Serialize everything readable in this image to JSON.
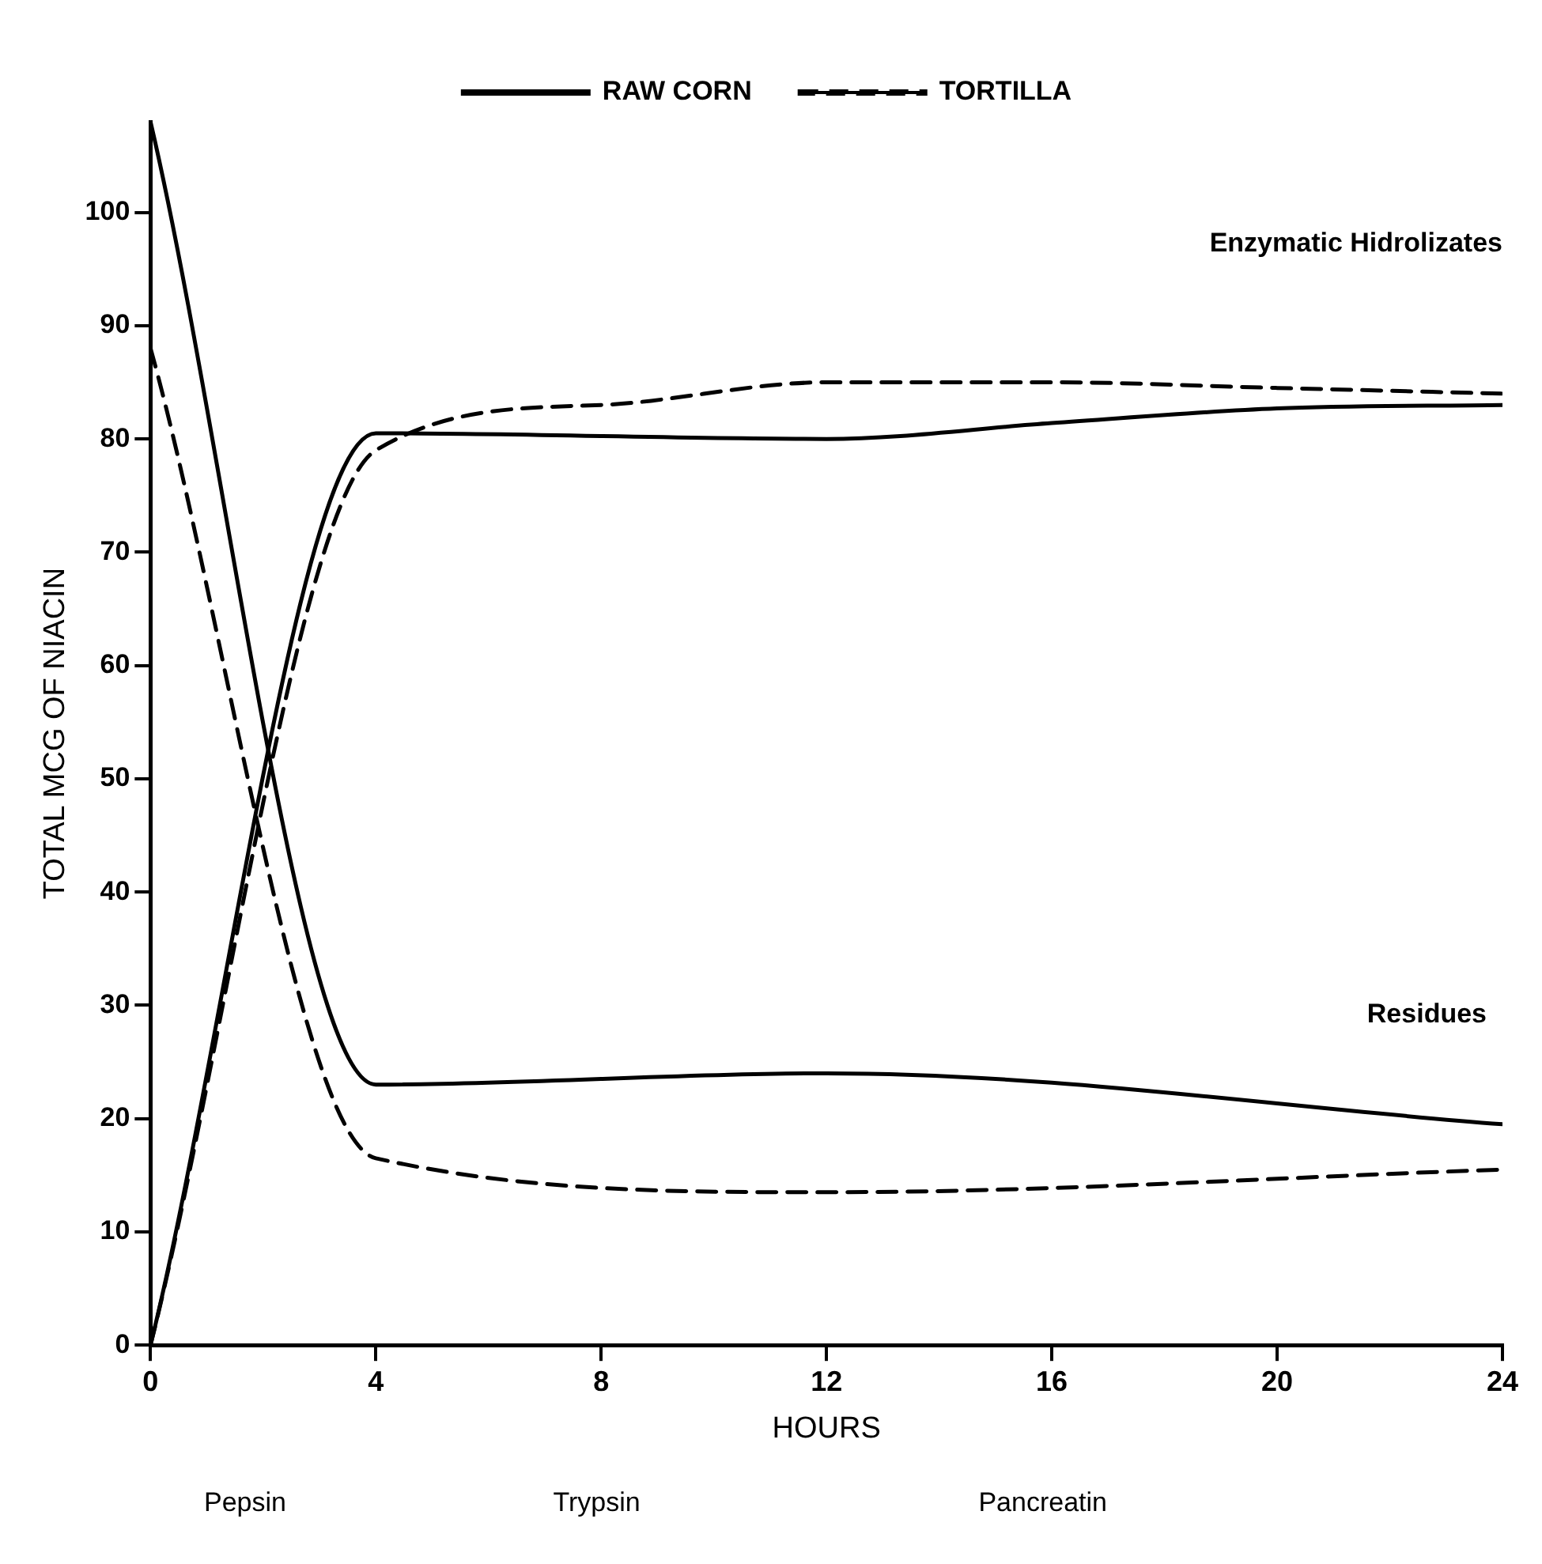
{
  "chart_data": {
    "type": "line",
    "xlabel": "HOURS",
    "ylabel": "TOTAL MCG OF NIACIN",
    "xlim": [
      0,
      24
    ],
    "xticks": [
      0,
      4,
      8,
      12,
      16,
      20,
      24
    ],
    "ylim": [
      0,
      108
    ],
    "yticks": [
      0,
      10,
      20,
      30,
      40,
      50,
      60,
      70,
      80,
      90,
      100
    ],
    "grid": false,
    "legend": "top",
    "marker": "none",
    "series": [
      {
        "name": "RAW CORN",
        "color": "#000000",
        "line_style": "solid",
        "x": [
          0,
          4,
          12,
          16,
          20,
          24
        ],
        "values": [
          0,
          80.5,
          80,
          81.4,
          82.7,
          83
        ]
      },
      {
        "color": "#000000",
        "line_style": "solid",
        "x": [
          0,
          4,
          12,
          24
        ],
        "values": [
          108,
          23,
          24,
          19.5
        ]
      },
      {
        "name": "TORTILLA",
        "color": "#000000",
        "line_style": "dashed",
        "x": [
          0,
          4,
          8,
          12,
          16,
          20,
          24
        ],
        "values": [
          0,
          79,
          83,
          85,
          85,
          84.5,
          84
        ]
      },
      {
        "color": "#000000",
        "line_style": "dashed",
        "x": [
          0,
          4,
          12,
          24
        ],
        "values": [
          88,
          16.5,
          13.5,
          15.5
        ]
      }
    ],
    "annotations": [
      "Enzymatic Hidrolizates",
      "Residues",
      "Pepsin",
      "Trypsin",
      "Pancreatin"
    ]
  }
}
